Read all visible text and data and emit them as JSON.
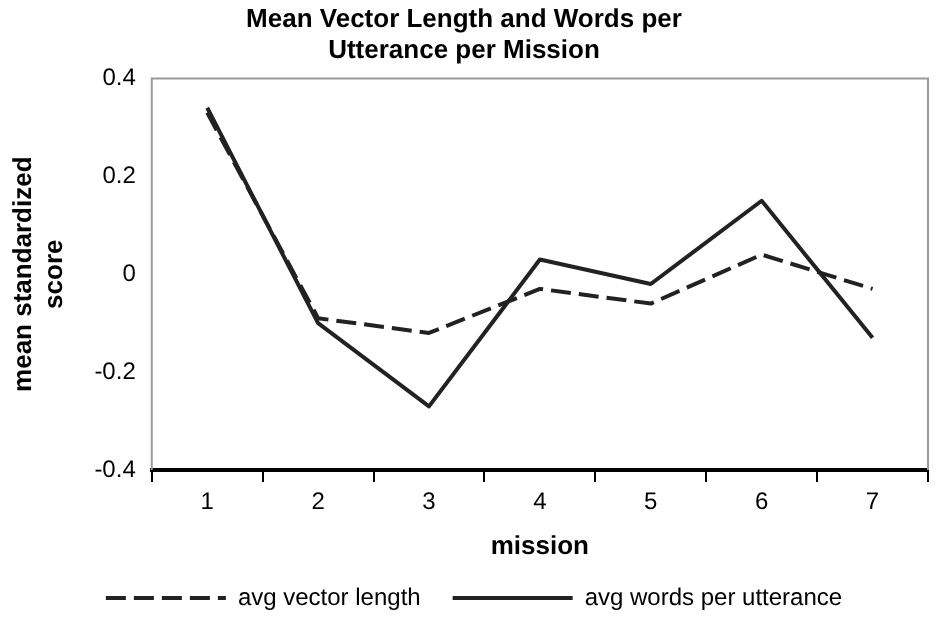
{
  "chart_data": {
    "type": "line",
    "title": [
      "Mean Vector Length and Words per",
      "Utterance per Mission"
    ],
    "xlabel": "mission",
    "ylabel": [
      "mean standardized",
      "score"
    ],
    "categories": [
      "1",
      "2",
      "3",
      "4",
      "5",
      "6",
      "7"
    ],
    "series": [
      {
        "name": "avg vector length",
        "color": "#222222",
        "line_style": "dashed",
        "values": [
          0.33,
          -0.09,
          -0.12,
          -0.03,
          -0.06,
          0.04,
          -0.03
        ]
      },
      {
        "name": "avg words per utterance",
        "color": "#222222",
        "line_style": "solid",
        "values": [
          0.34,
          -0.1,
          -0.27,
          0.03,
          -0.02,
          0.15,
          -0.13
        ]
      }
    ],
    "ylim": [
      -0.4,
      0.4
    ],
    "yticks": [
      -0.4,
      -0.2,
      0,
      0.2,
      0.4
    ],
    "grid": false,
    "legend": "bottom",
    "marker": "none"
  }
}
